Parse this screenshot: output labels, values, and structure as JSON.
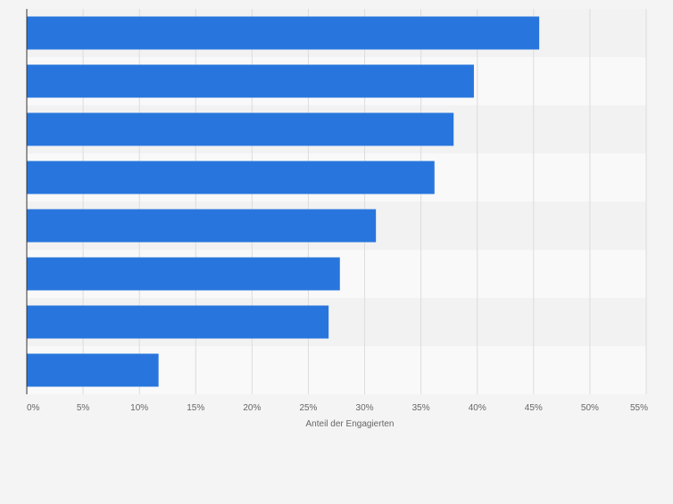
{
  "chart_data": {
    "type": "bar",
    "orientation": "horizontal",
    "categories": [
      "",
      "",
      "",
      "",
      "",
      "",
      "",
      ""
    ],
    "values": [
      45.5,
      39.7,
      37.9,
      36.2,
      31.0,
      27.8,
      26.8,
      11.7
    ],
    "xlabel": "Anteil der Engagierten",
    "xlim": [
      0,
      55
    ],
    "ticks": [
      "0%",
      "5%",
      "10%",
      "15%",
      "20%",
      "25%",
      "30%",
      "35%",
      "40%",
      "45%",
      "50%",
      "55%"
    ],
    "grid": true,
    "colors": {
      "bar": "#2876dd",
      "band_light": "#f9f9f9",
      "band_dark": "#f2f2f2",
      "grid": "#dcdcdc",
      "axis": "#333333",
      "text": "#666666"
    }
  }
}
